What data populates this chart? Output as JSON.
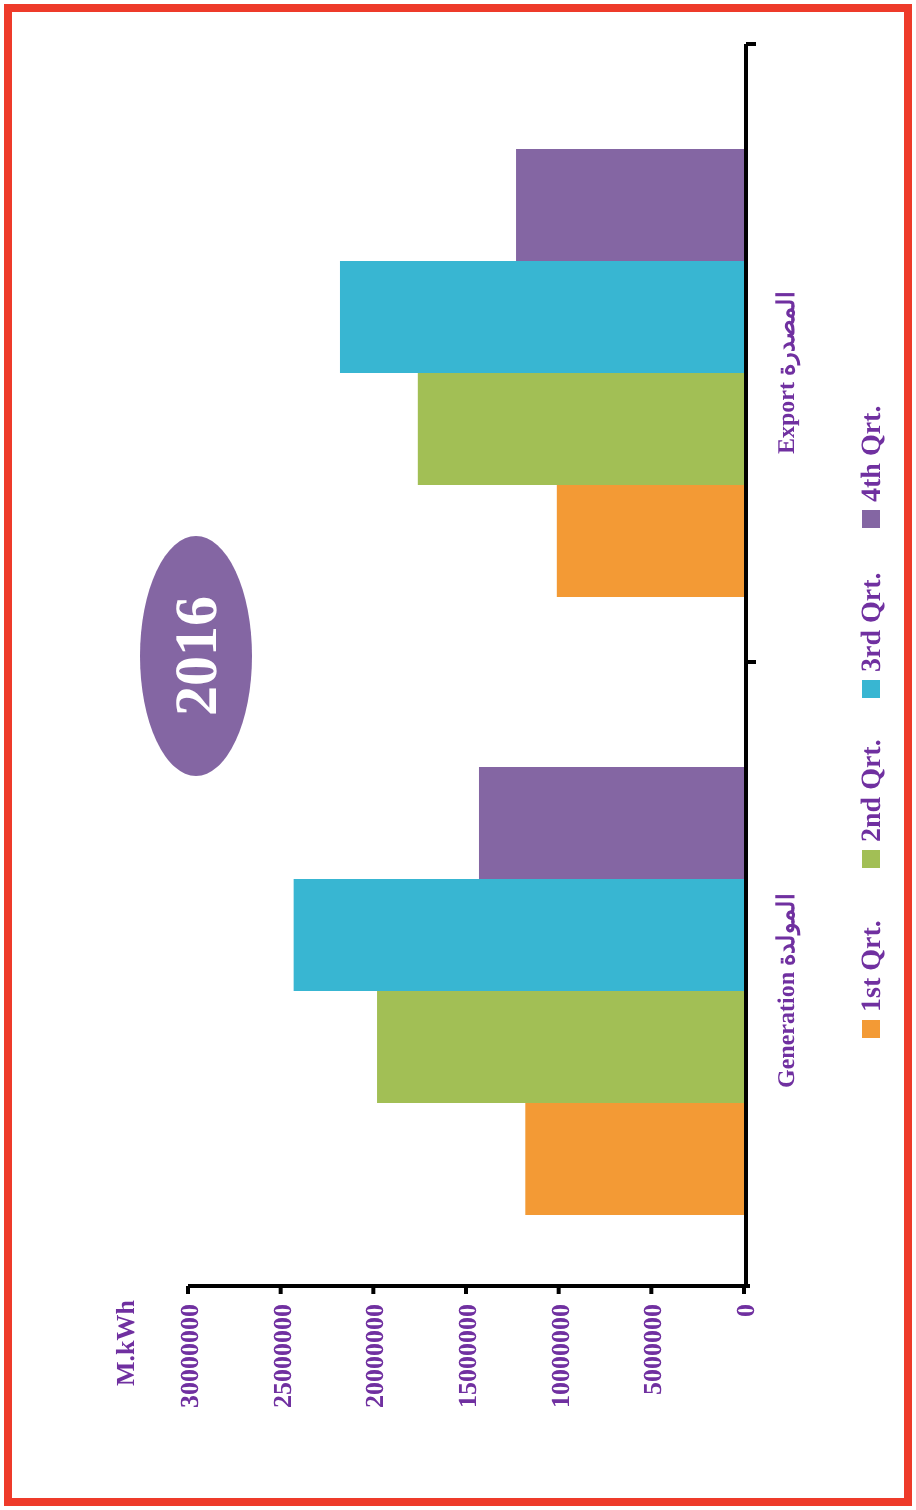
{
  "chart_data": {
    "type": "bar",
    "orientation": "horizontal",
    "title": "2016",
    "annotations": [
      "M.kWh"
    ],
    "categories": [
      "Export  المصدرة",
      "Generation المولدة"
    ],
    "series": [
      {
        "name": "1st Qrt.",
        "color": "#f39a35",
        "values": [
          10100000,
          11800000
        ]
      },
      {
        "name": "2nd Qrt.",
        "color": "#a2bf55",
        "values": [
          17600000,
          19800000
        ]
      },
      {
        "name": "3rd Qrt.",
        "color": "#38b6d2",
        "values": [
          21800000,
          24300000
        ]
      },
      {
        "name": "4th Qrt.",
        "color": "#8466a3",
        "values": [
          12300000,
          14300000
        ]
      }
    ],
    "xlim": [
      30000000,
      0
    ],
    "xticks": [
      30000000,
      25000000,
      20000000,
      15000000,
      10000000,
      5000000,
      0
    ],
    "grid": false,
    "legend": "right"
  }
}
